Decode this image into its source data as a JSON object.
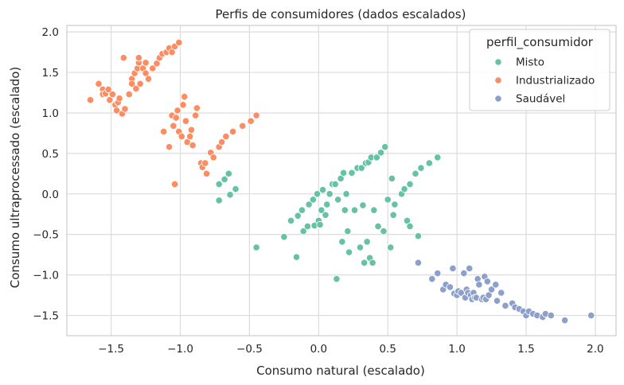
{
  "chart_data": {
    "type": "scatter",
    "title": "Perfis de consumidores (dados escalados)",
    "xlabel": "Consumo natural (escalado)",
    "ylabel": "Consumo ultraprocessado (escalado)",
    "xlim": [
      -1.82,
      2.15
    ],
    "ylim": [
      -1.75,
      2.08
    ],
    "x_ticks": [
      -1.5,
      -1.0,
      -0.5,
      0.0,
      0.5,
      1.0,
      1.5,
      2.0
    ],
    "x_tick_labels": [
      "−1.5",
      "−1.0",
      "−0.5",
      "0.0",
      "0.5",
      "1.0",
      "1.5",
      "2.0"
    ],
    "y_ticks": [
      -1.5,
      -1.0,
      -0.5,
      0.0,
      0.5,
      1.0,
      1.5,
      2.0
    ],
    "y_tick_labels": [
      "−1.5",
      "−1.0",
      "−0.5",
      "0.0",
      "0.5",
      "1.0",
      "1.5",
      "2.0"
    ],
    "grid": true,
    "legend": {
      "title": "perfil_consumidor",
      "position": "top-right"
    },
    "series": [
      {
        "name": "Misto",
        "color": "#66c2a5",
        "points": [
          [
            -0.72,
            0.12
          ],
          [
            -0.68,
            0.18
          ],
          [
            -0.65,
            0.25
          ],
          [
            -0.64,
            -0.01
          ],
          [
            -0.6,
            0.06
          ],
          [
            -0.72,
            -0.08
          ],
          [
            -0.45,
            -0.66
          ],
          [
            -0.25,
            -0.53
          ],
          [
            -0.2,
            -0.33
          ],
          [
            -0.16,
            -0.78
          ],
          [
            -0.15,
            -0.27
          ],
          [
            -0.12,
            -0.2
          ],
          [
            -0.11,
            -0.46
          ],
          [
            -0.08,
            -0.4
          ],
          [
            -0.07,
            -0.13
          ],
          [
            -0.04,
            -0.07
          ],
          [
            -0.03,
            -0.39
          ],
          [
            -0.01,
            0.0
          ],
          [
            0.0,
            -0.33
          ],
          [
            0.01,
            -0.38
          ],
          [
            0.02,
            -0.2
          ],
          [
            0.03,
            0.05
          ],
          [
            0.05,
            -0.26
          ],
          [
            0.06,
            -0.13
          ],
          [
            0.08,
            0.0
          ],
          [
            0.1,
            0.12
          ],
          [
            0.12,
            0.12
          ],
          [
            0.13,
            -1.05
          ],
          [
            0.14,
            -0.07
          ],
          [
            0.16,
            0.19
          ],
          [
            0.17,
            -0.59
          ],
          [
            0.18,
            0.26
          ],
          [
            0.19,
            -0.2
          ],
          [
            0.2,
            0.0
          ],
          [
            0.21,
            -0.46
          ],
          [
            0.22,
            -0.72
          ],
          [
            0.24,
            0.26
          ],
          [
            0.26,
            -0.2
          ],
          [
            0.28,
            0.32
          ],
          [
            0.3,
            -0.66
          ],
          [
            0.31,
            0.32
          ],
          [
            0.32,
            -0.14
          ],
          [
            0.33,
            -0.85
          ],
          [
            0.34,
            0.38
          ],
          [
            0.35,
            -0.59
          ],
          [
            0.36,
            0.39
          ],
          [
            0.37,
            -0.79
          ],
          [
            0.38,
            0.45
          ],
          [
            0.39,
            -0.85
          ],
          [
            0.4,
            -0.2
          ],
          [
            0.42,
            0.45
          ],
          [
            0.43,
            -0.4
          ],
          [
            0.45,
            0.51
          ],
          [
            0.47,
            -0.46
          ],
          [
            0.48,
            0.58
          ],
          [
            0.5,
            -0.07
          ],
          [
            0.52,
            -0.66
          ],
          [
            0.54,
            -0.26
          ],
          [
            0.53,
            0.19
          ],
          [
            0.55,
            -0.13
          ],
          [
            0.6,
            0.0
          ],
          [
            0.62,
            0.06
          ],
          [
            0.64,
            -0.33
          ],
          [
            0.66,
            -0.4
          ],
          [
            0.66,
            0.12
          ],
          [
            0.7,
            0.25
          ],
          [
            0.72,
            -0.52
          ],
          [
            0.74,
            0.32
          ],
          [
            0.8,
            0.38
          ],
          [
            0.86,
            0.45
          ]
        ]
      },
      {
        "name": "Industrializado",
        "color": "#fc8d62",
        "points": [
          [
            -1.65,
            1.16
          ],
          [
            -1.59,
            1.36
          ],
          [
            -1.56,
            1.29
          ],
          [
            -1.56,
            1.23
          ],
          [
            -1.54,
            1.24
          ],
          [
            -1.52,
            1.29
          ],
          [
            -1.51,
            1.16
          ],
          [
            -1.49,
            1.23
          ],
          [
            -1.47,
            1.1
          ],
          [
            -1.45,
            1.13
          ],
          [
            -1.46,
            1.03
          ],
          [
            -1.44,
            1.18
          ],
          [
            -1.42,
            0.99
          ],
          [
            -1.41,
            1.68
          ],
          [
            -1.4,
            1.05
          ],
          [
            -1.37,
            1.23
          ],
          [
            -1.35,
            1.42
          ],
          [
            -1.35,
            1.36
          ],
          [
            -1.33,
            1.49
          ],
          [
            -1.32,
            1.3
          ],
          [
            -1.31,
            1.55
          ],
          [
            -1.3,
            1.62
          ],
          [
            -1.3,
            1.68
          ],
          [
            -1.29,
            1.36
          ],
          [
            -1.27,
            1.55
          ],
          [
            -1.25,
            1.62
          ],
          [
            -1.25,
            1.49
          ],
          [
            -1.23,
            1.42
          ],
          [
            -1.2,
            1.55
          ],
          [
            -1.17,
            1.61
          ],
          [
            -1.15,
            1.68
          ],
          [
            -1.13,
            1.73
          ],
          [
            -1.1,
            1.75
          ],
          [
            -1.08,
            1.8
          ],
          [
            -1.06,
            1.75
          ],
          [
            -1.04,
            1.82
          ],
          [
            -1.01,
            1.87
          ],
          [
            -1.12,
            0.77
          ],
          [
            -1.08,
            0.58
          ],
          [
            -1.06,
            0.97
          ],
          [
            -1.05,
            0.84
          ],
          [
            -1.04,
            0.12
          ],
          [
            -1.03,
            0.94
          ],
          [
            -1.02,
            1.03
          ],
          [
            -1.01,
            0.77
          ],
          [
            -0.99,
            0.71
          ],
          [
            -0.98,
            1.1
          ],
          [
            -0.97,
            1.2
          ],
          [
            -0.96,
            0.9
          ],
          [
            -0.95,
            0.64
          ],
          [
            -0.93,
            0.71
          ],
          [
            -0.92,
            0.79
          ],
          [
            -0.91,
            0.6
          ],
          [
            -0.89,
            0.97
          ],
          [
            -0.88,
            1.06
          ],
          [
            -0.85,
            0.38
          ],
          [
            -0.84,
            0.33
          ],
          [
            -0.82,
            0.38
          ],
          [
            -0.81,
            0.25
          ],
          [
            -0.78,
            0.51
          ],
          [
            -0.76,
            0.45
          ],
          [
            -0.72,
            0.58
          ],
          [
            -0.7,
            0.64
          ],
          [
            -0.67,
            0.71
          ],
          [
            -0.62,
            0.77
          ],
          [
            -0.55,
            0.84
          ],
          [
            -0.49,
            0.9
          ],
          [
            -0.45,
            0.97
          ]
        ]
      },
      {
        "name": "Saudável",
        "color": "#8da0cb",
        "points": [
          [
            0.72,
            -0.85
          ],
          [
            0.82,
            -1.05
          ],
          [
            0.86,
            -0.98
          ],
          [
            0.9,
            -1.18
          ],
          [
            0.92,
            -1.12
          ],
          [
            0.95,
            -1.15
          ],
          [
            0.97,
            -0.92
          ],
          [
            0.98,
            -1.23
          ],
          [
            1.0,
            -1.25
          ],
          [
            1.01,
            -1.2
          ],
          [
            1.03,
            -1.22
          ],
          [
            1.05,
            -0.98
          ],
          [
            1.06,
            -1.28
          ],
          [
            1.07,
            -1.18
          ],
          [
            1.08,
            -1.22
          ],
          [
            1.09,
            -0.92
          ],
          [
            1.1,
            -1.25
          ],
          [
            1.11,
            -1.3
          ],
          [
            1.12,
            -1.22
          ],
          [
            1.13,
            -1.28
          ],
          [
            1.14,
            -1.28
          ],
          [
            1.15,
            -1.05
          ],
          [
            1.16,
            -1.12
          ],
          [
            1.18,
            -1.3
          ],
          [
            1.19,
            -1.28
          ],
          [
            1.2,
            -1.02
          ],
          [
            1.21,
            -1.3
          ],
          [
            1.22,
            -1.08
          ],
          [
            1.23,
            -1.25
          ],
          [
            1.25,
            -1.18
          ],
          [
            1.28,
            -1.12
          ],
          [
            1.29,
            -1.32
          ],
          [
            1.32,
            -1.22
          ],
          [
            1.35,
            -1.38
          ],
          [
            1.4,
            -1.35
          ],
          [
            1.42,
            -1.4
          ],
          [
            1.45,
            -1.42
          ],
          [
            1.48,
            -1.45
          ],
          [
            1.5,
            -1.5
          ],
          [
            1.52,
            -1.45
          ],
          [
            1.55,
            -1.48
          ],
          [
            1.58,
            -1.5
          ],
          [
            1.62,
            -1.52
          ],
          [
            1.64,
            -1.48
          ],
          [
            1.68,
            -1.5
          ],
          [
            1.78,
            -1.56
          ],
          [
            1.97,
            -1.5
          ]
        ]
      }
    ]
  }
}
